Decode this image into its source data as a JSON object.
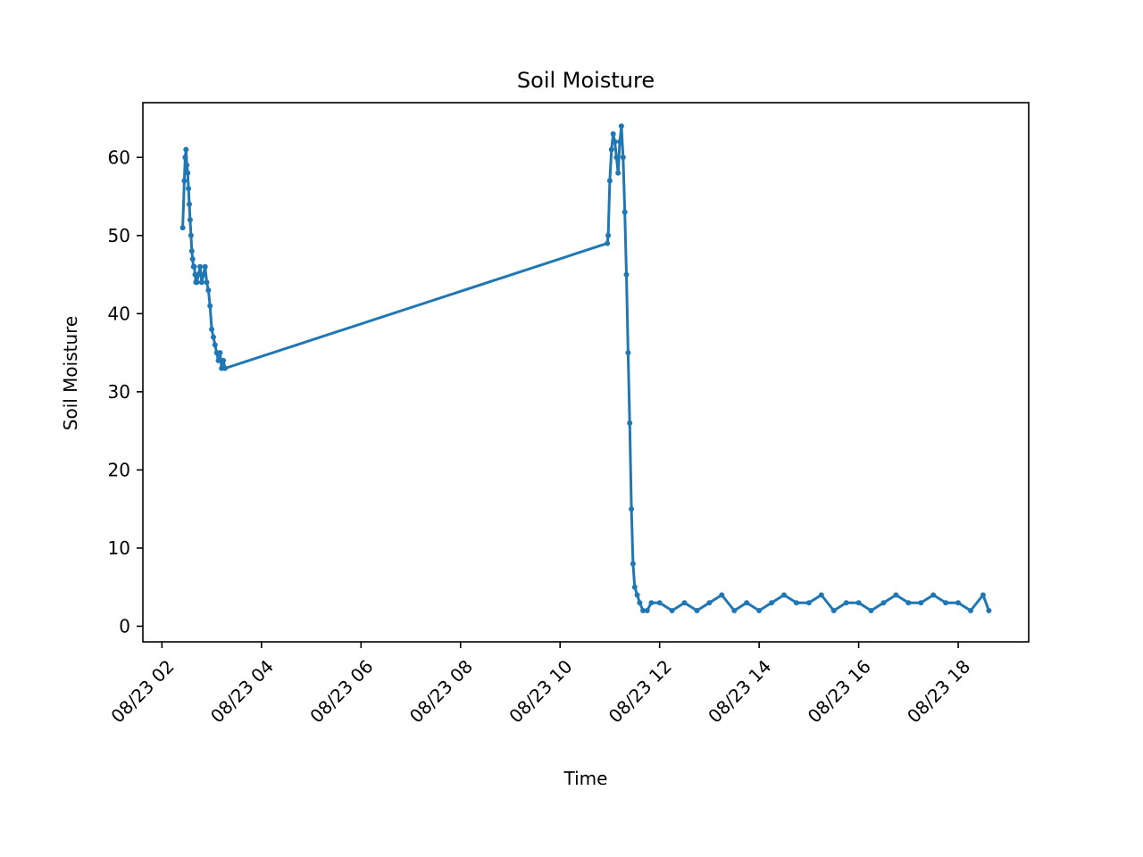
{
  "chart_data": {
    "type": "line",
    "title": "Soil Moisture",
    "xlabel": "Time",
    "ylabel": "Soil Moisture",
    "x_ticks": [
      "08/23 02",
      "08/23 04",
      "08/23 06",
      "08/23 08",
      "08/23 10",
      "08/23 12",
      "08/23 14",
      "08/23 16",
      "08/23 18"
    ],
    "y_ticks": [
      "0",
      "10",
      "20",
      "30",
      "40",
      "50",
      "60"
    ],
    "xlim": [
      "08/23 01:37",
      "08/23 19:25"
    ],
    "ylim": [
      -2,
      67
    ],
    "grid": false,
    "legend": "none",
    "line_color": "#1f77b4",
    "marker": "circle",
    "series": [
      {
        "x": [
          "08/23 02:25",
          "08/23 02:27",
          "08/23 02:28",
          "08/23 02:29",
          "08/23 02:30",
          "08/23 02:31",
          "08/23 02:32",
          "08/23 02:33",
          "08/23 02:34",
          "08/23 02:35",
          "08/23 02:36",
          "08/23 02:37",
          "08/23 02:38",
          "08/23 02:39",
          "08/23 02:40",
          "08/23 02:41",
          "08/23 02:42",
          "08/23 02:44",
          "08/23 02:46",
          "08/23 02:48",
          "08/23 02:50",
          "08/23 02:52",
          "08/23 02:54",
          "08/23 02:56",
          "08/23 02:58",
          "08/23 03:00",
          "08/23 03:02",
          "08/23 03:04",
          "08/23 03:06",
          "08/23 03:08",
          "08/23 03:10",
          "08/23 03:12",
          "08/23 03:14",
          "08/23 03:16",
          "08/23 10:57",
          "08/23 10:58",
          "08/23 11:00",
          "08/23 11:02",
          "08/23 11:04",
          "08/23 11:06",
          "08/23 11:08",
          "08/23 11:10",
          "08/23 11:12",
          "08/23 11:14",
          "08/23 11:16",
          "08/23 11:18",
          "08/23 11:20",
          "08/23 11:22",
          "08/23 11:24",
          "08/23 11:26",
          "08/23 11:28",
          "08/23 11:30",
          "08/23 11:33",
          "08/23 11:36",
          "08/23 11:40",
          "08/23 11:45",
          "08/23 11:50",
          "08/23 12:00",
          "08/23 12:15",
          "08/23 12:30",
          "08/23 12:45",
          "08/23 13:00",
          "08/23 13:15",
          "08/23 13:30",
          "08/23 13:45",
          "08/23 14:00",
          "08/23 14:15",
          "08/23 14:30",
          "08/23 14:45",
          "08/23 15:00",
          "08/23 15:15",
          "08/23 15:30",
          "08/23 15:45",
          "08/23 16:00",
          "08/23 16:15",
          "08/23 16:30",
          "08/23 16:45",
          "08/23 17:00",
          "08/23 17:15",
          "08/23 17:30",
          "08/23 17:45",
          "08/23 18:00",
          "08/23 18:15",
          "08/23 18:30",
          "08/23 18:37"
        ],
        "values": [
          51,
          57,
          60,
          61,
          59,
          58,
          56,
          54,
          52,
          50,
          48,
          47,
          46,
          46,
          45,
          44,
          44,
          45,
          46,
          44,
          45,
          46,
          44,
          43,
          41,
          38,
          37,
          36,
          35,
          34,
          35,
          33,
          34,
          33,
          49,
          50,
          57,
          61,
          63,
          62,
          60,
          58,
          62,
          64,
          60,
          53,
          45,
          35,
          26,
          15,
          8,
          5,
          4,
          3,
          2,
          2,
          3,
          3,
          2,
          3,
          2,
          3,
          4,
          2,
          3,
          2,
          3,
          4,
          3,
          3,
          4,
          2,
          3,
          3,
          2,
          3,
          4,
          3,
          3,
          4,
          3,
          3,
          2,
          4,
          2
        ]
      }
    ]
  }
}
